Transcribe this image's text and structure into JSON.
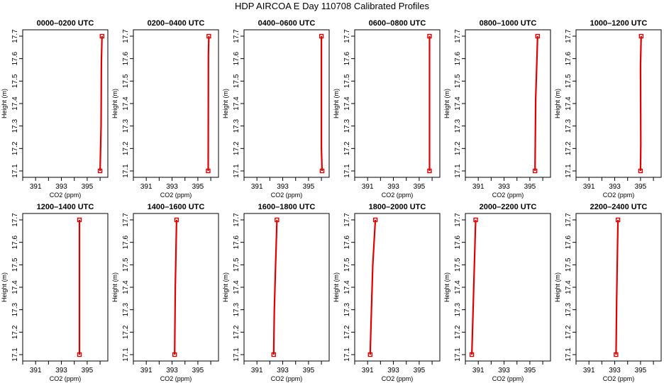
{
  "title": "HDP AIRCOA E  Day 110708  Calibrated Profiles",
  "colors": {
    "profile": "#e00000",
    "axis": "#000000",
    "background": "#ffffff"
  },
  "chart_data": [
    {
      "type": "line",
      "title": "0000–0200 UTC",
      "xlabel": "CO2 (ppm)",
      "ylabel": "Height (m)",
      "xlim": [
        390,
        396.6
      ],
      "ylim": [
        17.1,
        17.7
      ],
      "xticks": [
        391,
        393,
        395
      ],
      "yticks": [
        17.1,
        17.2,
        17.3,
        17.4,
        17.5,
        17.6,
        17.7
      ],
      "points": [
        {
          "x": 396.0,
          "y": 17.1
        },
        {
          "x": 396.08,
          "y": 17.3
        },
        {
          "x": 396.1,
          "y": 17.58
        },
        {
          "x": 396.15,
          "y": 17.7
        }
      ]
    },
    {
      "type": "line",
      "title": "0200–0400 UTC",
      "xlabel": "CO2 (ppm)",
      "ylabel": "Height (m)",
      "xlim": [
        390,
        396.6
      ],
      "ylim": [
        17.1,
        17.7
      ],
      "xticks": [
        391,
        393,
        395
      ],
      "yticks": [
        17.1,
        17.2,
        17.3,
        17.4,
        17.5,
        17.6,
        17.7
      ],
      "points": [
        {
          "x": 395.8,
          "y": 17.1
        },
        {
          "x": 395.82,
          "y": 17.62
        },
        {
          "x": 395.85,
          "y": 17.7
        }
      ]
    },
    {
      "type": "line",
      "title": "0400–0600 UTC",
      "xlabel": "CO2 (ppm)",
      "ylabel": "Height (m)",
      "xlim": [
        390,
        396.6
      ],
      "ylim": [
        17.1,
        17.7
      ],
      "xticks": [
        391,
        393,
        395
      ],
      "yticks": [
        17.1,
        17.2,
        17.3,
        17.4,
        17.5,
        17.6,
        17.7
      ],
      "points": [
        {
          "x": 396.05,
          "y": 17.1
        },
        {
          "x": 396.0,
          "y": 17.2
        },
        {
          "x": 396.0,
          "y": 17.7
        }
      ]
    },
    {
      "type": "line",
      "title": "0600–0800 UTC",
      "xlabel": "CO2 (ppm)",
      "ylabel": "Height (m)",
      "xlim": [
        390,
        396.6
      ],
      "ylim": [
        17.1,
        17.7
      ],
      "xticks": [
        391,
        393,
        395
      ],
      "yticks": [
        17.1,
        17.2,
        17.3,
        17.4,
        17.5,
        17.6,
        17.7
      ],
      "points": [
        {
          "x": 395.8,
          "y": 17.1
        },
        {
          "x": 395.8,
          "y": 17.7
        }
      ]
    },
    {
      "type": "line",
      "title": "0800–1000 UTC",
      "xlabel": "CO2 (ppm)",
      "ylabel": "Height (m)",
      "xlim": [
        390,
        396.6
      ],
      "ylim": [
        17.1,
        17.7
      ],
      "xticks": [
        391,
        393,
        395
      ],
      "yticks": [
        17.1,
        17.2,
        17.3,
        17.4,
        17.5,
        17.6,
        17.7
      ],
      "points": [
        {
          "x": 395.4,
          "y": 17.1
        },
        {
          "x": 395.45,
          "y": 17.42
        },
        {
          "x": 395.55,
          "y": 17.6
        },
        {
          "x": 395.6,
          "y": 17.7
        }
      ]
    },
    {
      "type": "line",
      "title": "1000–1200 UTC",
      "xlabel": "CO2 (ppm)",
      "ylabel": "Height (m)",
      "xlim": [
        390,
        396.6
      ],
      "ylim": [
        17.1,
        17.7
      ],
      "xticks": [
        391,
        393,
        395
      ],
      "yticks": [
        17.1,
        17.2,
        17.3,
        17.4,
        17.5,
        17.6,
        17.7
      ],
      "points": [
        {
          "x": 395.0,
          "y": 17.1
        },
        {
          "x": 395.02,
          "y": 17.22
        },
        {
          "x": 395.0,
          "y": 17.57
        },
        {
          "x": 395.05,
          "y": 17.7
        }
      ]
    },
    {
      "type": "line",
      "title": "1200–1400 UTC",
      "xlabel": "CO2 (ppm)",
      "ylabel": "Height (m)",
      "xlim": [
        390,
        396.6
      ],
      "ylim": [
        17.1,
        17.7
      ],
      "xticks": [
        391,
        393,
        395
      ],
      "yticks": [
        17.1,
        17.2,
        17.3,
        17.4,
        17.5,
        17.6,
        17.7
      ],
      "points": [
        {
          "x": 394.4,
          "y": 17.1
        },
        {
          "x": 394.4,
          "y": 17.7
        }
      ]
    },
    {
      "type": "line",
      "title": "1400–1600 UTC",
      "xlabel": "CO2 (ppm)",
      "ylabel": "Height (m)",
      "xlim": [
        390,
        396.6
      ],
      "ylim": [
        17.1,
        17.7
      ],
      "xticks": [
        391,
        393,
        395
      ],
      "yticks": [
        17.1,
        17.2,
        17.3,
        17.4,
        17.5,
        17.6,
        17.7
      ],
      "points": [
        {
          "x": 393.2,
          "y": 17.1
        },
        {
          "x": 393.25,
          "y": 17.4
        },
        {
          "x": 393.35,
          "y": 17.7
        }
      ]
    },
    {
      "type": "line",
      "title": "1600–1800 UTC",
      "xlabel": "CO2 (ppm)",
      "ylabel": "Height (m)",
      "xlim": [
        390,
        396.6
      ],
      "ylim": [
        17.1,
        17.7
      ],
      "xticks": [
        391,
        393,
        395
      ],
      "yticks": [
        17.1,
        17.2,
        17.3,
        17.4,
        17.5,
        17.6,
        17.7
      ],
      "points": [
        {
          "x": 392.3,
          "y": 17.1
        },
        {
          "x": 392.35,
          "y": 17.3
        },
        {
          "x": 392.45,
          "y": 17.5
        },
        {
          "x": 392.55,
          "y": 17.7
        }
      ]
    },
    {
      "type": "line",
      "title": "1800–2000 UTC",
      "xlabel": "CO2 (ppm)",
      "ylabel": "Height (m)",
      "xlim": [
        390,
        396.6
      ],
      "ylim": [
        17.1,
        17.7
      ],
      "xticks": [
        391,
        393,
        395
      ],
      "yticks": [
        17.1,
        17.2,
        17.3,
        17.4,
        17.5,
        17.6,
        17.7
      ],
      "points": [
        {
          "x": 391.2,
          "y": 17.1
        },
        {
          "x": 391.3,
          "y": 17.3
        },
        {
          "x": 391.4,
          "y": 17.5
        },
        {
          "x": 391.6,
          "y": 17.7
        }
      ]
    },
    {
      "type": "line",
      "title": "2000–2200 UTC",
      "xlabel": "CO2 (ppm)",
      "ylabel": "Height (m)",
      "xlim": [
        390,
        396.6
      ],
      "ylim": [
        17.1,
        17.7
      ],
      "xticks": [
        391,
        393,
        395
      ],
      "yticks": [
        17.1,
        17.2,
        17.3,
        17.4,
        17.5,
        17.6,
        17.7
      ],
      "points": [
        {
          "x": 390.5,
          "y": 17.1
        },
        {
          "x": 390.6,
          "y": 17.3
        },
        {
          "x": 390.7,
          "y": 17.5
        },
        {
          "x": 390.8,
          "y": 17.7
        }
      ]
    },
    {
      "type": "line",
      "title": "2200–2400 UTC",
      "xlabel": "CO2 (ppm)",
      "ylabel": "Height (m)",
      "xlim": [
        390,
        396.6
      ],
      "ylim": [
        17.1,
        17.7
      ],
      "xticks": [
        391,
        393,
        395
      ],
      "yticks": [
        17.1,
        17.2,
        17.3,
        17.4,
        17.5,
        17.6,
        17.7
      ],
      "points": [
        {
          "x": 393.1,
          "y": 17.1
        },
        {
          "x": 393.15,
          "y": 17.35
        },
        {
          "x": 393.25,
          "y": 17.7
        }
      ]
    }
  ]
}
